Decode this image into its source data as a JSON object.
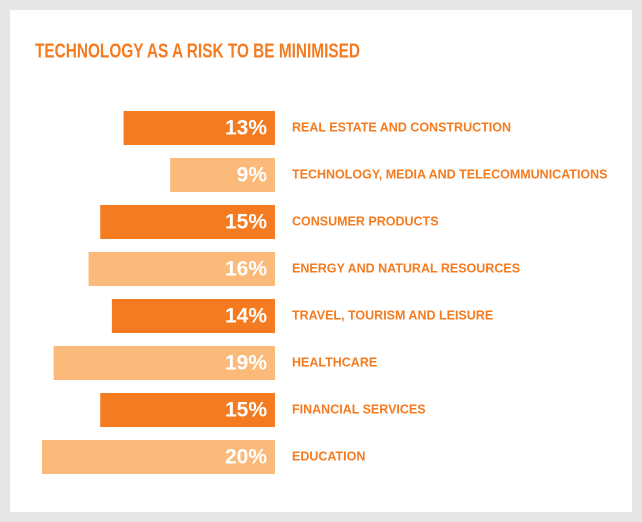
{
  "chart_data": {
    "type": "bar",
    "orientation": "horizontal-left",
    "title": "TECHNOLOGY AS A RISK TO BE MINIMISED",
    "categories": [
      "REAL ESTATE AND CONSTRUCTION",
      "TECHNOLOGY, MEDIA AND TELECOMMUNICATIONS",
      "CONSUMER PRODUCTS",
      "ENERGY AND NATURAL RESOURCES",
      "TRAVEL, TOURISM AND LEISURE",
      "HEALTHCARE",
      "FINANCIAL SERVICES",
      "EDUCATION"
    ],
    "values": [
      13,
      9,
      15,
      16,
      14,
      19,
      15,
      20
    ],
    "value_labels": [
      "13%",
      "9%",
      "15%",
      "16%",
      "14%",
      "19%",
      "15%",
      "20%"
    ],
    "colors": [
      "#f47b20",
      "#fbb97a",
      "#f47b20",
      "#fbb97a",
      "#f47b20",
      "#fbb97a",
      "#f47b20",
      "#fbb97a"
    ],
    "label_color": "#f47b20"
  }
}
